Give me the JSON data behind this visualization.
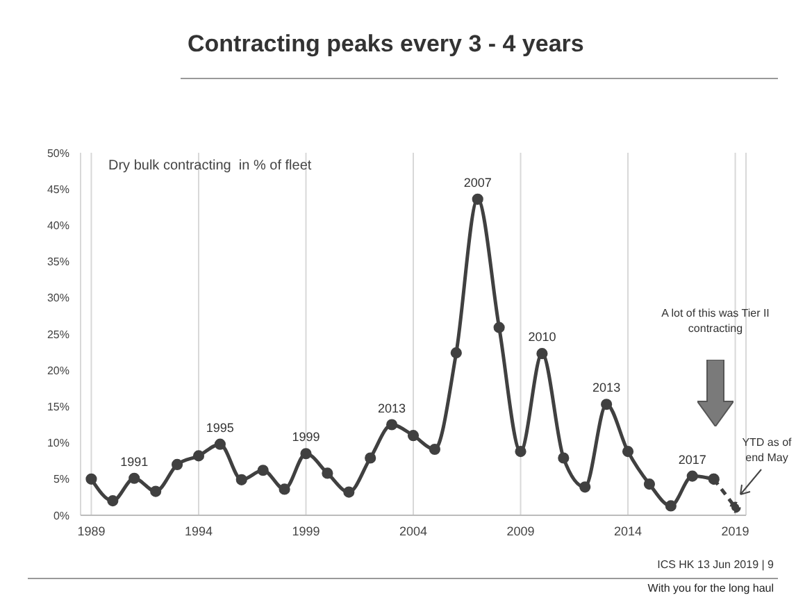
{
  "chart_data": {
    "type": "line",
    "title": "Contracting peaks every 3 - 4 years",
    "x": [
      1989,
      1990,
      1991,
      1992,
      1993,
      1994,
      1995,
      1996,
      1997,
      1998,
      1999,
      2000,
      2001,
      2002,
      2003,
      2004,
      2005,
      2006,
      2007,
      2008,
      2009,
      2010,
      2011,
      2012,
      2013,
      2014,
      2015,
      2016,
      2017,
      2018
    ],
    "series": [
      {
        "color": "#404040",
        "values": [
          5,
          2,
          5.1,
          3.3,
          7,
          8.2,
          9.8,
          4.9,
          6.2,
          3.6,
          8.5,
          5.8,
          3.2,
          7.9,
          12.5,
          11,
          9.1,
          22.4,
          43.6,
          25.9,
          8.8,
          22.3,
          7.9,
          3.9,
          15.3,
          8.8,
          4.3,
          1.3,
          5.4,
          5
        ],
        "line_style": "solid"
      },
      {
        "color": "#404040",
        "x": [
          2018,
          2019
        ],
        "values": [
          5,
          1.1
        ],
        "line_style": "dashed"
      }
    ],
    "xlim": [
      1988.5,
      2019.5
    ],
    "xticks": [
      1989,
      1994,
      1999,
      2004,
      2009,
      2014,
      2019
    ],
    "ylim": [
      0,
      50
    ],
    "yticks": [
      {
        "value": 0,
        "label": "0%"
      },
      {
        "value": 5,
        "label": "5%"
      },
      {
        "value": 10,
        "label": "10%"
      },
      {
        "value": 15,
        "label": "15%"
      },
      {
        "value": 20,
        "label": "20%"
      },
      {
        "value": 25,
        "label": "25%"
      },
      {
        "value": 30,
        "label": "30%"
      },
      {
        "value": 35,
        "label": "35%"
      },
      {
        "value": 40,
        "label": "40%"
      },
      {
        "value": 45,
        "label": "45%"
      },
      {
        "value": 50,
        "label": "50%"
      }
    ],
    "grid": "x",
    "marker": "circle",
    "annotations": [
      "Dry bulk contracting  in % of fleet",
      "A lot of this was Tier II contracting",
      "YTD as of end May",
      "ICS HK 13 Jun 2019 | 9",
      "With you for the long haul",
      {
        "text": "1991",
        "x": 1991,
        "y": 5.1
      },
      {
        "text": "1995",
        "x": 1995,
        "y": 9.8
      },
      {
        "text": "1999",
        "x": 1999,
        "y": 8.5
      },
      {
        "text": "2013",
        "x": 2003,
        "y": 12.5
      },
      {
        "text": "2007",
        "x": 2007,
        "y": 43.6
      },
      {
        "text": "2010",
        "x": 2010,
        "y": 22.3
      },
      {
        "text": "2013",
        "x": 2013,
        "y": 15.3
      },
      {
        "text": "2017",
        "x": 2017,
        "y": 5.4
      }
    ]
  }
}
